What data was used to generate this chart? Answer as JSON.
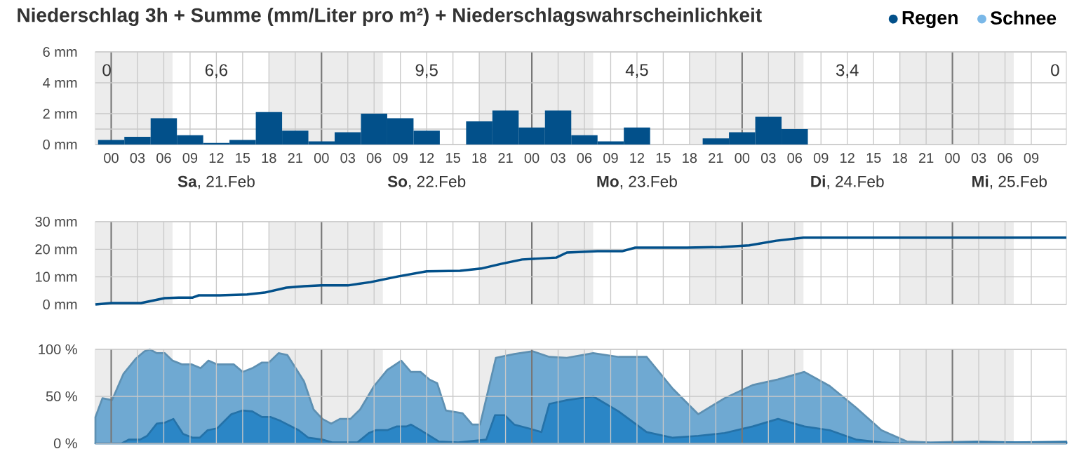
{
  "chart_data": [
    {
      "type": "bar",
      "title": "Niederschlag 3h + Summe (mm/Liter pro m²) + Niederschlagswahrscheinlichkeit",
      "x": [
        0,
        3,
        6,
        9,
        12,
        15,
        18,
        21,
        24,
        27,
        30,
        33,
        36,
        39,
        42,
        45,
        48,
        51,
        54,
        57,
        60,
        63,
        66,
        69,
        72,
        75,
        78,
        81,
        84,
        87,
        90,
        93,
        96,
        99,
        102,
        105
      ],
      "series": [
        {
          "name": "Regen",
          "color": "#02508a",
          "values": [
            0.3,
            0.5,
            1.7,
            0.6,
            0.1,
            0.3,
            2.1,
            0.9,
            0.2,
            0.8,
            2.0,
            1.7,
            0.9,
            0,
            1.5,
            2.2,
            1.1,
            2.2,
            0.6,
            0.2,
            1.1,
            0,
            0,
            0.4,
            0.8,
            1.8,
            1.0,
            0,
            0,
            0,
            0,
            0,
            0,
            0,
            0,
            0
          ]
        },
        {
          "name": "Schnee",
          "color": "#7ab8e8",
          "values": [
            0,
            0,
            0,
            0,
            0,
            0,
            0,
            0,
            0,
            0,
            0,
            0,
            0,
            0,
            0,
            0,
            0,
            0,
            0,
            0,
            0,
            0,
            0,
            0,
            0,
            0,
            0,
            0,
            0,
            0,
            0,
            0,
            0,
            0,
            0,
            0
          ]
        }
      ],
      "xlim": [
        -1.8,
        109
      ],
      "xticks": [
        {
          "value": 0,
          "label": "00"
        },
        {
          "value": 3,
          "label": "03"
        },
        {
          "value": 6,
          "label": "06"
        },
        {
          "value": 9,
          "label": "09"
        },
        {
          "value": 12,
          "label": "12"
        },
        {
          "value": 15,
          "label": "15"
        },
        {
          "value": 18,
          "label": "18"
        },
        {
          "value": 21,
          "label": "21"
        },
        {
          "value": 24,
          "label": "00"
        },
        {
          "value": 27,
          "label": "03"
        },
        {
          "value": 30,
          "label": "06"
        },
        {
          "value": 33,
          "label": "09"
        },
        {
          "value": 36,
          "label": "12"
        },
        {
          "value": 39,
          "label": "15"
        },
        {
          "value": 42,
          "label": "18"
        },
        {
          "value": 45,
          "label": "21"
        },
        {
          "value": 48,
          "label": "00"
        },
        {
          "value": 51,
          "label": "03"
        },
        {
          "value": 54,
          "label": "06"
        },
        {
          "value": 57,
          "label": "09"
        },
        {
          "value": 60,
          "label": "12"
        },
        {
          "value": 63,
          "label": "15"
        },
        {
          "value": 66,
          "label": "18"
        },
        {
          "value": 69,
          "label": "21"
        },
        {
          "value": 72,
          "label": "00"
        },
        {
          "value": 75,
          "label": "03"
        },
        {
          "value": 78,
          "label": "06"
        },
        {
          "value": 81,
          "label": "09"
        },
        {
          "value": 84,
          "label": "12"
        },
        {
          "value": 87,
          "label": "15"
        },
        {
          "value": 90,
          "label": "18"
        },
        {
          "value": 93,
          "label": "21"
        },
        {
          "value": 96,
          "label": "00"
        },
        {
          "value": 99,
          "label": "03"
        },
        {
          "value": 102,
          "label": "06"
        },
        {
          "value": 105,
          "label": "09"
        }
      ],
      "ylim": [
        0,
        6
      ],
      "yticks": [
        {
          "value": 0,
          "label": "0 mm"
        },
        {
          "value": 1,
          "label": null
        },
        {
          "value": 2,
          "label": "2 mm"
        },
        {
          "value": 4,
          "label": "4 mm"
        },
        {
          "value": 6,
          "label": "6 mm"
        }
      ],
      "grid": true,
      "legend": "top right",
      "bands": [
        {
          "axis": "x",
          "from": -1.8,
          "to": 7,
          "color": "#ececec"
        },
        {
          "axis": "x",
          "from": 18,
          "to": 31,
          "color": "#ececec"
        },
        {
          "axis": "x",
          "from": 42,
          "to": 55,
          "color": "#ececec"
        },
        {
          "axis": "x",
          "from": 66,
          "to": 79,
          "color": "#ececec"
        },
        {
          "axis": "x",
          "from": 90,
          "to": 103,
          "color": "#ececec"
        }
      ],
      "annotations": [
        "0",
        "6,6",
        "9,5",
        "4,5",
        "3,4",
        "0",
        "**Sa**, 21.Feb",
        "**So**, 22.Feb",
        "**Mo**, 23.Feb",
        "**Di**, 24.Feb",
        "**Mi**, 25.Feb"
      ]
    },
    {
      "type": "line",
      "series": [
        {
          "color": "#02508a",
          "x": [
            -1.8,
            0,
            3.4,
            6.1,
            7.7,
            9.3,
            10,
            12.4,
            15.5,
            17.5,
            20,
            22,
            24,
            27,
            29.6,
            32.8,
            36,
            39.8,
            42.2,
            44.5,
            46.9,
            50.8,
            52,
            55.5,
            58.3,
            59.8,
            65.7,
            69.6,
            72.8,
            75.9,
            79,
            109
          ],
          "values": [
            0,
            0.5,
            0.5,
            2.3,
            2.5,
            2.5,
            3.3,
            3.3,
            3.6,
            4.3,
            6.1,
            6.6,
            6.9,
            6.9,
            8.1,
            10.2,
            12,
            12.2,
            13,
            14.7,
            16.3,
            17,
            18.8,
            19.3,
            19.3,
            20.6,
            20.6,
            20.8,
            21.4,
            23.1,
            24.2,
            24.2
          ]
        }
      ],
      "xlim": [
        -1.8,
        109
      ],
      "xticks": [
        0,
        3,
        6,
        9,
        12,
        15,
        18,
        21,
        24,
        27,
        30,
        33,
        36,
        39,
        42,
        45,
        48,
        51,
        54,
        57,
        60,
        63,
        66,
        69,
        72,
        75,
        78,
        81,
        84,
        87,
        90,
        93,
        96,
        99,
        102,
        105
      ],
      "ylim": [
        0,
        30
      ],
      "yticks": [
        {
          "value": 0,
          "label": "0 mm"
        },
        {
          "value": 10,
          "label": "10 mm"
        },
        {
          "value": 20,
          "label": "20 mm"
        },
        {
          "value": 30,
          "label": "30 mm"
        }
      ],
      "tick_labels": "y",
      "grid": true,
      "line_style": "solid",
      "bands": [
        {
          "axis": "x",
          "from": -1.8,
          "to": 7,
          "color": "#ececec"
        },
        {
          "axis": "x",
          "from": 18,
          "to": 31,
          "color": "#ececec"
        },
        {
          "axis": "x",
          "from": 42,
          "to": 55,
          "color": "#ececec"
        },
        {
          "axis": "x",
          "from": 66,
          "to": 79,
          "color": "#ececec"
        },
        {
          "axis": "x",
          "from": 90,
          "to": 103,
          "color": "#ececec"
        }
      ]
    },
    {
      "type": "area",
      "series": [
        {
          "color": "#6fa9d2",
          "x": [
            -1.8,
            -1,
            0.1,
            1.4,
            2.8,
            3.8,
            4.4,
            5.2,
            6.1,
            7,
            8.1,
            9.2,
            10.2,
            11.1,
            12.1,
            14,
            15,
            16.1,
            17.2,
            18,
            19.1,
            20.1,
            22,
            23.1,
            24.1,
            25.1,
            26.1,
            27.3,
            28.4,
            30,
            31.5,
            33.1,
            34.2,
            35.3,
            36.3,
            37.2,
            38.2,
            40.1,
            41.2,
            42.1,
            43.9,
            46,
            48.1,
            50,
            52,
            55,
            57.9,
            61.1,
            64.1,
            67,
            70,
            73.2,
            76.1,
            79.1,
            82,
            85,
            87.9,
            90.8,
            93.5,
            98.9,
            103.2,
            109
          ],
          "values": [
            28,
            48,
            46,
            74,
            90,
            98,
            100,
            96,
            96,
            88,
            84,
            84,
            80,
            88,
            84,
            84,
            76,
            80,
            86,
            86,
            96,
            94,
            66,
            36,
            26,
            21,
            26,
            26,
            36,
            61,
            78,
            88,
            76,
            76,
            68,
            64,
            35,
            32,
            20,
            20,
            91,
            95,
            98,
            92,
            91,
            96,
            92,
            92,
            58,
            31,
            48,
            62,
            68,
            76,
            61,
            38,
            14,
            2,
            1,
            2,
            1,
            2
          ]
        },
        {
          "color": "#2b86c6",
          "x": [
            -1.8,
            1.2,
            2,
            3.3,
            4.1,
            5.2,
            6.1,
            7.1,
            8.2,
            9.3,
            10.1,
            11,
            12.1,
            13.7,
            15,
            16.1,
            17.2,
            18.2,
            19.3,
            21.4,
            22.5,
            24.1,
            25.2,
            28.1,
            29.4,
            30.2,
            31.5,
            32.6,
            33.7,
            34.2,
            35.3,
            37.4,
            39.6,
            42.8,
            43.8,
            44.9,
            46,
            47.6,
            49.1,
            50,
            52,
            55,
            57.9,
            61.1,
            64.1,
            67,
            70,
            73.2,
            76.1,
            79.1,
            82,
            85,
            87.9,
            90.8,
            98.9,
            109
          ],
          "values": [
            0,
            0,
            4,
            4,
            8,
            21,
            22,
            26,
            10,
            6,
            6,
            14,
            16,
            31,
            35,
            34,
            28,
            28,
            24,
            14,
            6,
            4,
            1,
            1,
            11,
            14,
            14,
            18,
            18,
            20,
            14,
            2,
            1,
            4,
            30,
            30,
            20,
            16,
            12,
            42,
            46,
            50,
            34,
            12,
            6,
            8,
            11,
            18,
            26,
            18,
            14,
            4,
            1,
            0,
            1,
            1
          ]
        }
      ],
      "xlim": [
        -1.8,
        109
      ],
      "xticks": [
        0,
        3,
        6,
        9,
        12,
        15,
        18,
        21,
        24,
        27,
        30,
        33,
        36,
        39,
        42,
        45,
        48,
        51,
        54,
        57,
        60,
        63,
        66,
        69,
        72,
        75,
        78,
        81,
        84,
        87,
        90,
        93,
        96,
        99,
        102,
        105
      ],
      "ylim": [
        0,
        100
      ],
      "yticks": [
        {
          "value": 0,
          "label": "0 %"
        },
        {
          "value": 50,
          "label": "50 %"
        },
        {
          "value": 100,
          "label": "100 %"
        }
      ],
      "tick_labels": "y",
      "grid": true,
      "bands": [
        {
          "axis": "x",
          "from": -1.8,
          "to": 7,
          "color": "#ececec"
        },
        {
          "axis": "x",
          "from": 18,
          "to": 31,
          "color": "#ececec"
        },
        {
          "axis": "x",
          "from": 42,
          "to": 55,
          "color": "#ececec"
        },
        {
          "axis": "x",
          "from": 66,
          "to": 79,
          "color": "#ececec"
        },
        {
          "axis": "x",
          "from": 90,
          "to": 103,
          "color": "#ececec"
        }
      ]
    }
  ]
}
